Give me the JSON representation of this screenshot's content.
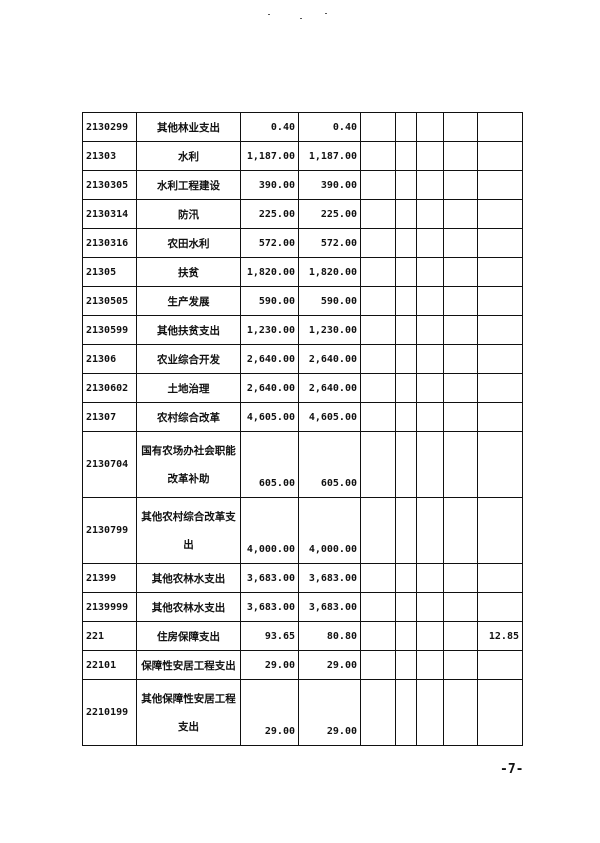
{
  "table": {
    "rows": [
      {
        "code": "2130299",
        "name": "其他林业支出",
        "total": "0.40",
        "basic": "0.40",
        "c5": "",
        "c6": "",
        "c7": "",
        "c8": "",
        "c9": ""
      },
      {
        "code": "21303",
        "name": "水利",
        "total": "1,187.00",
        "basic": "1,187.00",
        "c5": "",
        "c6": "",
        "c7": "",
        "c8": "",
        "c9": ""
      },
      {
        "code": "2130305",
        "name": "水利工程建设",
        "total": "390.00",
        "basic": "390.00",
        "c5": "",
        "c6": "",
        "c7": "",
        "c8": "",
        "c9": ""
      },
      {
        "code": "2130314",
        "name": "防汛",
        "total": "225.00",
        "basic": "225.00",
        "c5": "",
        "c6": "",
        "c7": "",
        "c8": "",
        "c9": ""
      },
      {
        "code": "2130316",
        "name": "农田水利",
        "total": "572.00",
        "basic": "572.00",
        "c5": "",
        "c6": "",
        "c7": "",
        "c8": "",
        "c9": ""
      },
      {
        "code": "21305",
        "name": "扶贫",
        "total": "1,820.00",
        "basic": "1,820.00",
        "c5": "",
        "c6": "",
        "c7": "",
        "c8": "",
        "c9": ""
      },
      {
        "code": "2130505",
        "name": "生产发展",
        "total": "590.00",
        "basic": "590.00",
        "c5": "",
        "c6": "",
        "c7": "",
        "c8": "",
        "c9": ""
      },
      {
        "code": "2130599",
        "name": "其他扶贫支出",
        "total": "1,230.00",
        "basic": "1,230.00",
        "c5": "",
        "c6": "",
        "c7": "",
        "c8": "",
        "c9": ""
      },
      {
        "code": "21306",
        "name": "农业综合开发",
        "total": "2,640.00",
        "basic": "2,640.00",
        "c5": "",
        "c6": "",
        "c7": "",
        "c8": "",
        "c9": ""
      },
      {
        "code": "2130602",
        "name": "土地治理",
        "total": "2,640.00",
        "basic": "2,640.00",
        "c5": "",
        "c6": "",
        "c7": "",
        "c8": "",
        "c9": ""
      },
      {
        "code": "21307",
        "name": "农村综合改革",
        "total": "4,605.00",
        "basic": "4,605.00",
        "c5": "",
        "c6": "",
        "c7": "",
        "c8": "",
        "c9": ""
      },
      {
        "code": "2130704",
        "name": "国有农场办社会职能改革补助",
        "total": "605.00",
        "basic": "605.00",
        "c5": "",
        "c6": "",
        "c7": "",
        "c8": "",
        "c9": "",
        "tall": true
      },
      {
        "code": "2130799",
        "name": "其他农村综合改革支出",
        "total": "4,000.00",
        "basic": "4,000.00",
        "c5": "",
        "c6": "",
        "c7": "",
        "c8": "",
        "c9": "",
        "tall": true
      },
      {
        "code": "21399",
        "name": "其他农林水支出",
        "total": "3,683.00",
        "basic": "3,683.00",
        "c5": "",
        "c6": "",
        "c7": "",
        "c8": "",
        "c9": ""
      },
      {
        "code": "2139999",
        "name": "其他农林水支出",
        "total": "3,683.00",
        "basic": "3,683.00",
        "c5": "",
        "c6": "",
        "c7": "",
        "c8": "",
        "c9": ""
      },
      {
        "code": "221",
        "name": "住房保障支出",
        "total": "93.65",
        "basic": "80.80",
        "c5": "",
        "c6": "",
        "c7": "",
        "c8": "",
        "c9": "12.85"
      },
      {
        "code": "22101",
        "name": "保障性安居工程支出",
        "total": "29.00",
        "basic": "29.00",
        "c5": "",
        "c6": "",
        "c7": "",
        "c8": "",
        "c9": ""
      },
      {
        "code": "2210199",
        "name": "其他保障性安居工程支出",
        "total": "29.00",
        "basic": "29.00",
        "c5": "",
        "c6": "",
        "c7": "",
        "c8": "",
        "c9": "",
        "tall": true
      }
    ]
  },
  "page_number": "-7-"
}
